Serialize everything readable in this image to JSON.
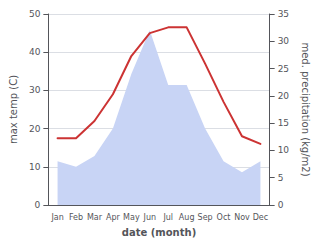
{
  "chart_data": {
    "type": "line",
    "xlabel": "date (month)",
    "ylabel": "max temp (C)",
    "y2label": "med. precipitation (kg/m2)",
    "categories": [
      "Jan",
      "Feb",
      "Mar",
      "Apr",
      "May",
      "Jun",
      "Jul",
      "Aug",
      "Sep",
      "Oct",
      "Nov",
      "Dec"
    ],
    "series": [
      {
        "type": "area",
        "color": "#c8d4f5",
        "axis": "y2",
        "values": [
          8,
          7,
          9,
          14,
          24,
          32,
          22,
          22,
          14,
          8,
          6,
          8
        ]
      },
      {
        "type": "line",
        "color": "#cc3333",
        "values": [
          17.5,
          17.5,
          22,
          29,
          39,
          45,
          46.5,
          46.5,
          37,
          27,
          18,
          16
        ]
      }
    ],
    "ylim": [
      0,
      50
    ],
    "yticks": [
      0,
      10,
      20,
      30,
      40,
      50
    ],
    "y2lim": [
      0,
      35
    ],
    "y2ticks": [
      0,
      5,
      10,
      15,
      20,
      25,
      30,
      35
    ],
    "grid": true
  }
}
